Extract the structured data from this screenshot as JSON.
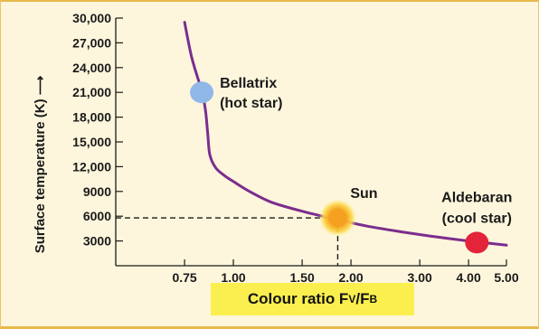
{
  "chart_data": {
    "type": "line",
    "title": "",
    "xlabel": "Colour ratio F_V/F_B",
    "xlabel_main": "Colour ratio F",
    "xlabel_sub_v": "V",
    "xlabel_slash": "/F",
    "xlabel_sub_b": "B",
    "ylabel": "Surface temperature (K) ⟶",
    "xlim": [
      0.5,
      5.0
    ],
    "ylim": [
      0,
      30000
    ],
    "x_scale": "log",
    "x_ticks": [
      0.75,
      1.0,
      1.5,
      2.0,
      3.0,
      4.0,
      5.0
    ],
    "x_tick_labels": [
      "0.75",
      "1.00",
      "1.50",
      "2.00",
      "3.00",
      "4.00",
      "5.00"
    ],
    "y_ticks": [
      3000,
      6000,
      9000,
      12000,
      15000,
      18000,
      21000,
      24000,
      27000,
      30000
    ],
    "y_tick_labels": [
      "3000",
      "6000",
      "9000",
      "12,000",
      "15,000",
      "18,000",
      "21,000",
      "24,000",
      "27,000",
      "30,000"
    ],
    "series": [
      {
        "color": "#7b2d8e",
        "x": [
          0.75,
          0.78,
          0.81,
          0.83,
          0.84,
          0.85,
          0.86,
          0.87,
          0.9,
          0.95,
          1.0,
          1.1,
          1.25,
          1.5,
          1.8,
          2.2,
          2.7,
          3.3,
          4.0,
          5.0
        ],
        "y": [
          29500,
          25500,
          22800,
          21300,
          20100,
          18500,
          16000,
          13500,
          11900,
          10900,
          10200,
          9000,
          7700,
          6600,
          5700,
          4800,
          4100,
          3500,
          3000,
          2500
        ]
      }
    ],
    "points": [
      {
        "label": "Bellatrix",
        "sublabel": "(hot star)",
        "x": 0.83,
        "y": 21000,
        "color": "#8fb8e8"
      },
      {
        "label": "Sun",
        "sublabel": "",
        "x": 1.85,
        "y": 5800,
        "color": "#f5a020"
      },
      {
        "label": "Aldebaran",
        "sublabel": "(cool star)",
        "x": 4.2,
        "y": 2800,
        "color": "#e3243b"
      }
    ],
    "reference_lines": {
      "x": 1.85,
      "y": 5800
    },
    "grid": false
  }
}
